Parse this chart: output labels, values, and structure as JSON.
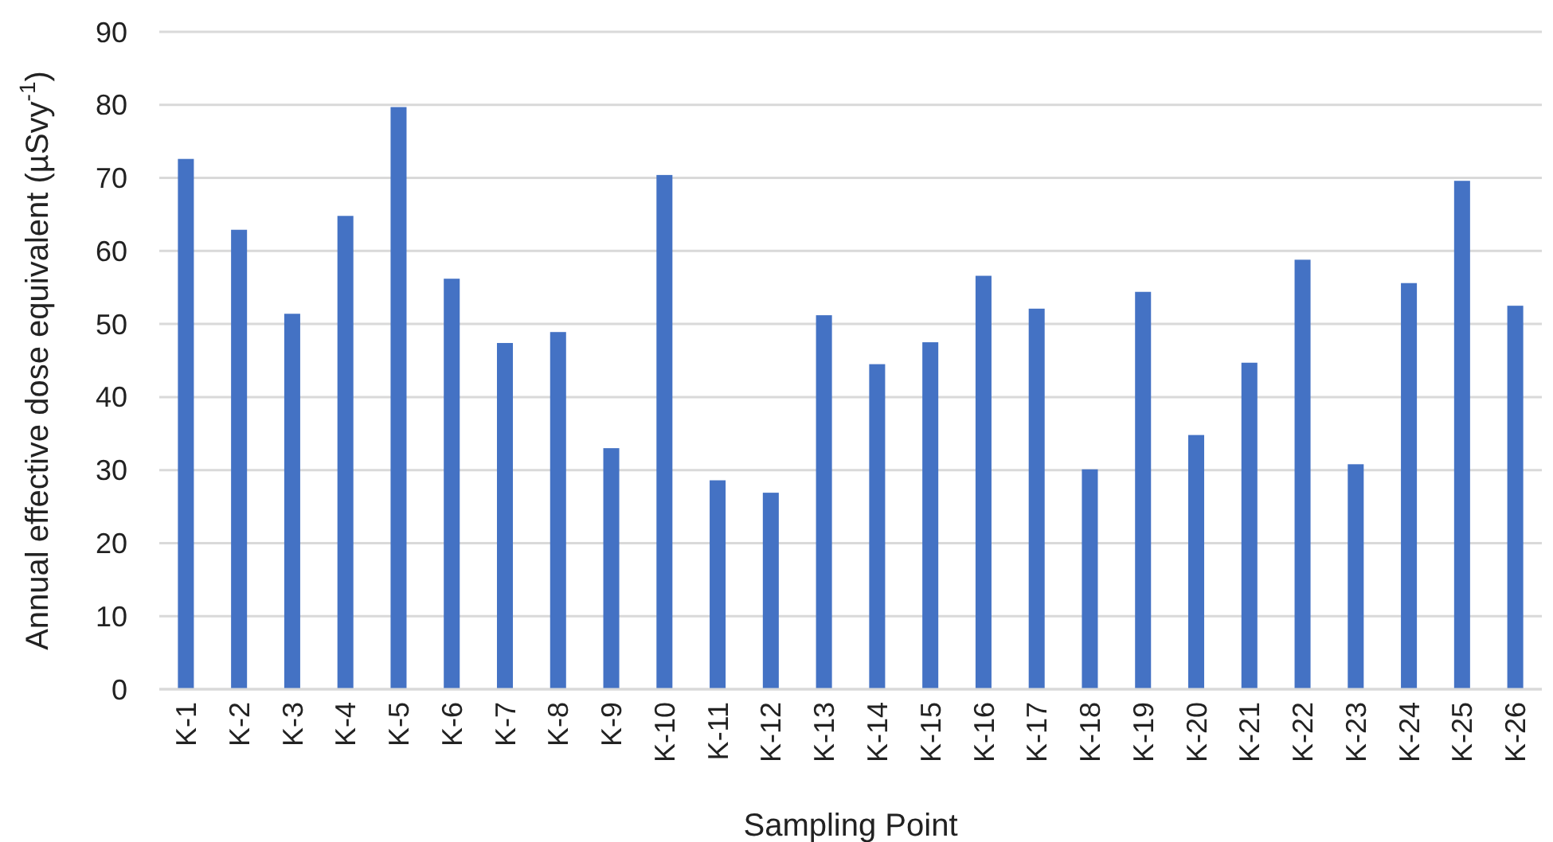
{
  "chart_data": {
    "type": "bar",
    "xlabel": "Sampling Point",
    "ylabel": "Annual effective dose equivalent (µSvy$^{-1}$)",
    "categories": [
      "K-1",
      "K-2",
      "K-3",
      "K-4",
      "K-5",
      "K-6",
      "K-7",
      "K-8",
      "K-9",
      "K-10",
      "K-11",
      "K-12",
      "K-13",
      "K-14",
      "K-15",
      "K-16",
      "K-17",
      "K-18",
      "K-19",
      "K-20",
      "K-21",
      "K-22",
      "K-23",
      "K-24",
      "K-25",
      "K-26"
    ],
    "values": [
      72.6,
      62.9,
      51.4,
      64.8,
      79.7,
      56.2,
      47.4,
      48.9,
      33.0,
      70.4,
      28.6,
      26.9,
      51.2,
      44.5,
      47.5,
      56.6,
      52.1,
      30.1,
      54.4,
      34.8,
      44.7,
      58.8,
      30.8,
      55.6,
      69.6,
      52.5
    ],
    "color": "#4472c4",
    "ylim": [
      0,
      90
    ],
    "yticks": [
      0,
      10,
      20,
      30,
      40,
      50,
      60,
      70,
      80,
      90
    ],
    "grid": "y"
  }
}
